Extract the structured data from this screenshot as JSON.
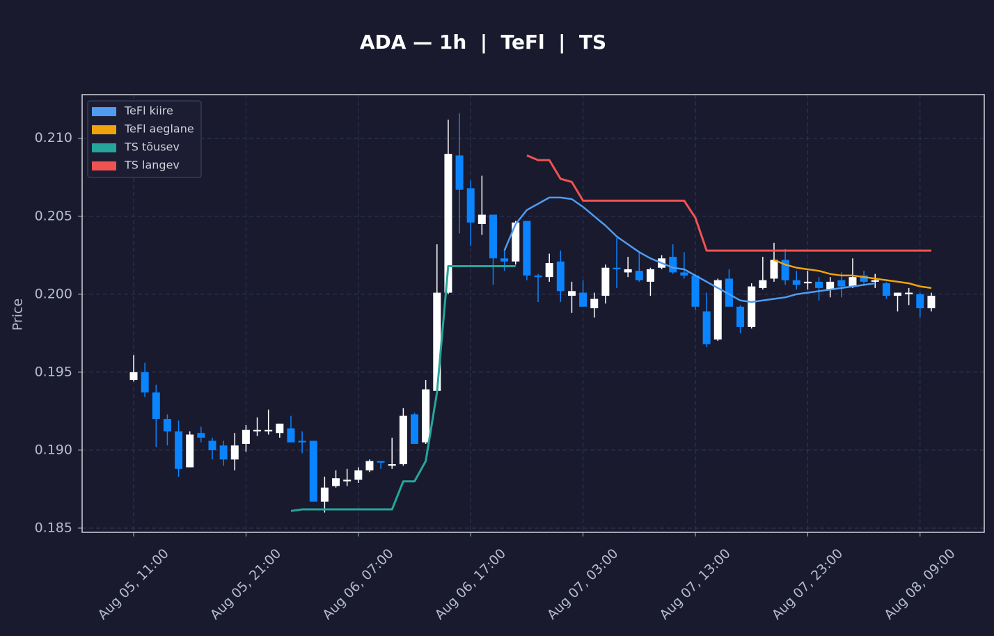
{
  "chart_data": {
    "type": "candlestick",
    "title": "ADA — 1h  |  TeFl  |  TS",
    "ylabel": "Price",
    "x": [
      "Aug 05, 11:00",
      "Aug 05, 12:00",
      "Aug 05, 13:00",
      "Aug 05, 14:00",
      "Aug 05, 15:00",
      "Aug 05, 16:00",
      "Aug 05, 17:00",
      "Aug 05, 18:00",
      "Aug 05, 19:00",
      "Aug 05, 20:00",
      "Aug 05, 21:00",
      "Aug 05, 22:00",
      "Aug 05, 23:00",
      "Aug 06, 00:00",
      "Aug 06, 01:00",
      "Aug 06, 02:00",
      "Aug 06, 03:00",
      "Aug 06, 04:00",
      "Aug 06, 05:00",
      "Aug 06, 06:00",
      "Aug 06, 07:00",
      "Aug 06, 08:00",
      "Aug 06, 09:00",
      "Aug 06, 10:00",
      "Aug 06, 11:00",
      "Aug 06, 12:00",
      "Aug 06, 13:00",
      "Aug 06, 14:00",
      "Aug 06, 15:00",
      "Aug 06, 16:00",
      "Aug 06, 17:00",
      "Aug 06, 18:00",
      "Aug 06, 19:00",
      "Aug 06, 20:00",
      "Aug 06, 21:00",
      "Aug 06, 22:00",
      "Aug 06, 23:00",
      "Aug 07, 00:00",
      "Aug 07, 01:00",
      "Aug 07, 02:00",
      "Aug 07, 03:00",
      "Aug 07, 04:00",
      "Aug 07, 05:00",
      "Aug 07, 06:00",
      "Aug 07, 07:00",
      "Aug 07, 08:00",
      "Aug 07, 09:00",
      "Aug 07, 10:00",
      "Aug 07, 11:00",
      "Aug 07, 12:00",
      "Aug 07, 13:00",
      "Aug 07, 14:00",
      "Aug 07, 15:00",
      "Aug 07, 16:00",
      "Aug 07, 17:00",
      "Aug 07, 18:00",
      "Aug 07, 19:00",
      "Aug 07, 20:00",
      "Aug 07, 21:00",
      "Aug 07, 22:00",
      "Aug 07, 23:00",
      "Aug 08, 00:00",
      "Aug 08, 01:00",
      "Aug 08, 02:00",
      "Aug 08, 03:00",
      "Aug 08, 04:00",
      "Aug 08, 05:00",
      "Aug 08, 06:00",
      "Aug 08, 07:00",
      "Aug 08, 08:00",
      "Aug 08, 09:00",
      "Aug 08, 10:00"
    ],
    "open": [
      0.1945,
      0.195,
      0.1937,
      0.192,
      0.1912,
      0.1889,
      0.1911,
      0.1906,
      0.1903,
      0.1894,
      0.1904,
      0.1912,
      0.1912,
      0.1911,
      0.1914,
      0.1906,
      0.1906,
      0.1867,
      0.1877,
      0.188,
      0.1881,
      0.1887,
      0.1893,
      0.189,
      0.1891,
      0.1923,
      0.1905,
      0.1938,
      0.2001,
      0.2089,
      0.2068,
      0.2045,
      0.2051,
      0.2023,
      0.2021,
      0.2047,
      0.2012,
      0.2011,
      0.2021,
      0.1999,
      0.2001,
      0.1991,
      0.1999,
      0.2017,
      0.2014,
      0.2015,
      0.2008,
      0.2017,
      0.2024,
      0.2014,
      0.2012,
      0.1989,
      0.1971,
      0.201,
      0.1992,
      0.1979,
      0.2004,
      0.201,
      0.2022,
      0.2009,
      0.2007,
      0.2008,
      0.2003,
      0.2009,
      0.2005,
      0.2012,
      0.2008,
      0.2007,
      0.1999,
      0.2,
      0.2,
      0.1991
    ],
    "high": [
      0.1961,
      0.1956,
      0.1942,
      0.1923,
      0.1919,
      0.1912,
      0.1915,
      0.1908,
      0.1906,
      0.1911,
      0.1916,
      0.1921,
      0.1926,
      0.1917,
      0.1922,
      0.1912,
      0.1906,
      0.1883,
      0.1887,
      0.1888,
      0.1889,
      0.1894,
      0.1893,
      0.1908,
      0.1927,
      0.1924,
      0.1945,
      0.2032,
      0.2112,
      0.2116,
      0.2073,
      0.2076,
      0.2051,
      0.2028,
      0.2047,
      0.2047,
      0.2013,
      0.2026,
      0.2028,
      0.2008,
      0.2009,
      0.2001,
      0.2019,
      0.2036,
      0.2024,
      0.2027,
      0.2017,
      0.2025,
      0.2032,
      0.2027,
      0.2013,
      0.2001,
      0.201,
      0.2016,
      0.1993,
      0.2007,
      0.2024,
      0.2033,
      0.2029,
      0.2015,
      0.2015,
      0.2011,
      0.2011,
      0.2014,
      0.2023,
      0.2015,
      0.2013,
      0.2008,
      0.2001,
      0.2004,
      0.2001,
      0.2001
    ],
    "low": [
      0.1944,
      0.1934,
      0.1902,
      0.1903,
      0.1883,
      0.1889,
      0.1905,
      0.1894,
      0.189,
      0.1887,
      0.1899,
      0.1909,
      0.191,
      0.1908,
      0.1905,
      0.1898,
      0.1867,
      0.186,
      0.1876,
      0.1877,
      0.1879,
      0.1886,
      0.1888,
      0.1888,
      0.189,
      0.1904,
      0.1904,
      0.1938,
      0.2,
      0.2039,
      0.2031,
      0.2038,
      0.2006,
      0.2015,
      0.2019,
      0.2009,
      0.1995,
      0.2008,
      0.1995,
      0.1988,
      0.1992,
      0.1985,
      0.1994,
      0.2004,
      0.2011,
      0.2008,
      0.1999,
      0.2016,
      0.2013,
      0.201,
      0.199,
      0.1966,
      0.197,
      0.1992,
      0.1975,
      0.1978,
      0.2003,
      0.2008,
      0.2006,
      0.2003,
      0.2003,
      0.1996,
      0.1998,
      0.1998,
      0.2004,
      0.2006,
      0.2004,
      0.1997,
      0.1989,
      0.1993,
      0.1985,
      0.1989
    ],
    "close": [
      0.195,
      0.1937,
      0.192,
      0.1912,
      0.1888,
      0.191,
      0.1908,
      0.19,
      0.1894,
      0.1903,
      0.1913,
      0.1913,
      0.1913,
      0.1917,
      0.1905,
      0.1905,
      0.1867,
      0.1876,
      0.1882,
      0.1881,
      0.1887,
      0.1893,
      0.1892,
      0.1891,
      0.1922,
      0.1904,
      0.1939,
      0.2001,
      0.209,
      0.2067,
      0.2046,
      0.2051,
      0.2023,
      0.2021,
      0.2046,
      0.2012,
      0.2011,
      0.202,
      0.2002,
      0.2002,
      0.1992,
      0.1997,
      0.2017,
      0.2016,
      0.2016,
      0.2009,
      0.2016,
      0.2023,
      0.2014,
      0.2012,
      0.1992,
      0.1968,
      0.2009,
      0.1992,
      0.1979,
      0.2005,
      0.2009,
      0.2022,
      0.2009,
      0.2006,
      0.2008,
      0.2004,
      0.2008,
      0.2005,
      0.2011,
      0.2008,
      0.2009,
      0.1999,
      0.2001,
      0.2001,
      0.1991,
      0.1999
    ],
    "up_color": "#ffffff",
    "down_color": "#0a84ff",
    "series": [
      {
        "name": "TeFl kiire",
        "color": "#4f9cf0",
        "values": [
          null,
          null,
          null,
          null,
          null,
          null,
          null,
          null,
          null,
          null,
          null,
          null,
          null,
          null,
          null,
          null,
          null,
          null,
          null,
          null,
          null,
          null,
          null,
          null,
          null,
          null,
          null,
          null,
          null,
          null,
          null,
          null,
          null,
          0.2028,
          0.2045,
          0.2054,
          0.2058,
          0.2062,
          0.2062,
          0.2061,
          0.2056,
          0.205,
          0.2044,
          0.2037,
          0.2032,
          0.2027,
          0.2023,
          0.202,
          0.2017,
          0.2016,
          0.2012,
          0.2008,
          0.2004,
          0.2,
          0.1996,
          0.1995,
          0.1996,
          0.1997,
          0.1998,
          0.2,
          0.2001,
          0.2002,
          0.2003,
          0.2004,
          0.2005,
          0.2006,
          0.2007,
          null,
          null,
          null,
          null,
          null
        ]
      },
      {
        "name": "TeFl aeglane",
        "color": "#f0a30a",
        "values": [
          null,
          null,
          null,
          null,
          null,
          null,
          null,
          null,
          null,
          null,
          null,
          null,
          null,
          null,
          null,
          null,
          null,
          null,
          null,
          null,
          null,
          null,
          null,
          null,
          null,
          null,
          null,
          null,
          null,
          null,
          null,
          null,
          null,
          null,
          null,
          null,
          null,
          null,
          null,
          null,
          null,
          null,
          null,
          null,
          null,
          null,
          null,
          null,
          null,
          null,
          null,
          null,
          null,
          null,
          null,
          null,
          null,
          0.2022,
          0.2019,
          0.2017,
          0.2016,
          0.2015,
          0.2013,
          0.2012,
          0.2012,
          0.2011,
          0.201,
          0.2009,
          0.2008,
          0.2007,
          0.2005,
          0.2004
        ]
      },
      {
        "name": "TS tõusev",
        "color": "#26a69a",
        "values": [
          null,
          null,
          null,
          null,
          null,
          null,
          null,
          null,
          null,
          null,
          null,
          null,
          null,
          null,
          0.1861,
          0.1862,
          0.1862,
          0.1862,
          0.1862,
          0.1862,
          0.1862,
          0.1862,
          0.1862,
          0.1862,
          0.188,
          0.188,
          0.1893,
          0.1937,
          0.2018,
          0.2018,
          0.2018,
          0.2018,
          0.2018,
          0.2018,
          0.2018,
          null,
          null,
          null,
          null,
          null,
          null,
          null,
          null,
          null,
          null,
          null,
          null,
          null,
          null,
          null,
          null,
          null,
          null,
          null,
          null,
          null,
          null,
          null,
          null,
          null,
          null,
          null,
          null,
          null,
          null,
          null,
          null,
          null,
          null,
          null,
          null,
          null
        ]
      },
      {
        "name": "TS langev",
        "color": "#ef5350",
        "values": [
          null,
          null,
          null,
          null,
          null,
          null,
          null,
          null,
          null,
          null,
          null,
          null,
          null,
          null,
          null,
          null,
          null,
          null,
          null,
          null,
          null,
          null,
          null,
          null,
          null,
          null,
          null,
          null,
          null,
          null,
          null,
          null,
          null,
          null,
          null,
          0.2089,
          0.2086,
          0.2086,
          0.2074,
          0.2072,
          0.206,
          0.206,
          0.206,
          0.206,
          0.206,
          0.206,
          0.206,
          0.206,
          0.206,
          0.206,
          0.2049,
          0.2028,
          0.2028,
          0.2028,
          0.2028,
          0.2028,
          0.2028,
          0.2028,
          0.2028,
          0.2028,
          0.2028,
          0.2028,
          0.2028,
          0.2028,
          0.2028,
          0.2028,
          0.2028,
          0.2028,
          0.2028,
          0.2028,
          0.2028,
          0.2028
        ]
      }
    ],
    "ylim": [
      0.18473,
      0.2128
    ],
    "yticks": [
      0.185,
      {
        "value": 0.19,
        "label": "0.190"
      },
      0.195,
      {
        "value": 0.2,
        "label": "0.200"
      },
      0.205,
      {
        "value": 0.21,
        "label": "0.210"
      }
    ],
    "xticks": [
      "Aug 05, 11:00",
      "Aug 05, 21:00",
      "Aug 06, 07:00",
      "Aug 06, 17:00",
      "Aug 07, 03:00",
      "Aug 07, 13:00",
      "Aug 07, 23:00",
      "Aug 08, 09:00"
    ],
    "grid": true,
    "legend": "upper left"
  }
}
